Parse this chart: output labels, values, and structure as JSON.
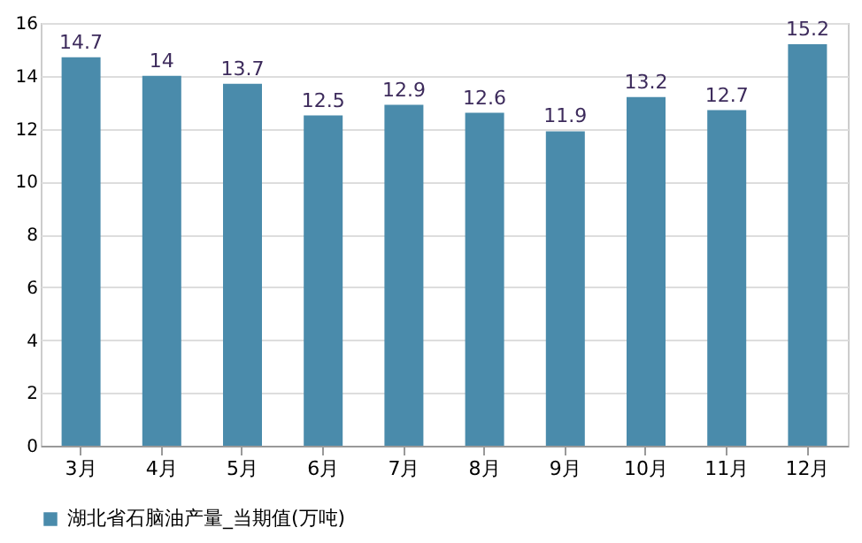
{
  "chart_data": {
    "type": "bar",
    "categories": [
      "3月",
      "4月",
      "5月",
      "6月",
      "7月",
      "8月",
      "9月",
      "10月",
      "11月",
      "12月"
    ],
    "series": [
      {
        "name": "湖北省石脑油产量_当期值(万吨)",
        "color": "#4a8bab",
        "values": [
          14.7,
          14,
          13.7,
          12.5,
          12.9,
          12.6,
          11.9,
          13.2,
          12.7,
          15.2
        ]
      }
    ],
    "ylim": [
      0,
      16
    ],
    "yticks": [
      0,
      2,
      4,
      6,
      8,
      10,
      12,
      14,
      16
    ],
    "grid": "y",
    "legend": "bottom",
    "data_labels": true
  }
}
